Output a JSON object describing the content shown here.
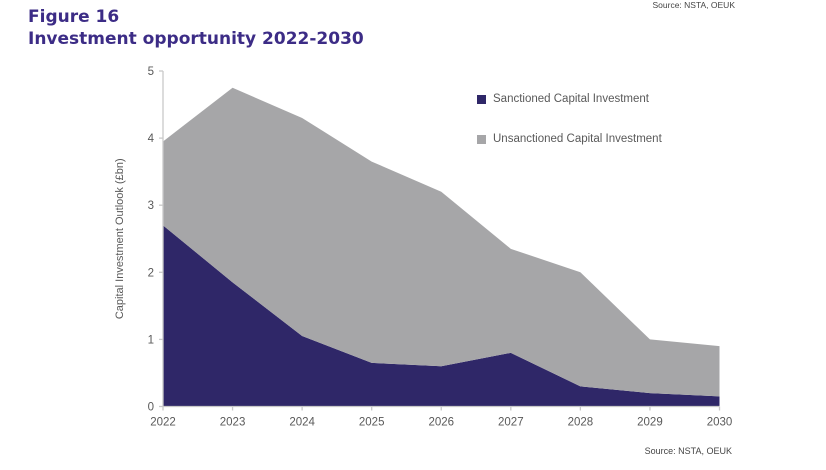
{
  "header": {
    "figure_label": "Figure 16",
    "title": "Investment opportunity 2022-2030",
    "title_color": "#3C2C86"
  },
  "source_top": "Source: NSTA, OEUK",
  "source_bottom": "Source: NSTA, OEUK",
  "colors": {
    "sanctioned": "#2F2768",
    "unsanctioned": "#A6A6A8",
    "axis_line": "#C9C9C9",
    "tick_label": "#595959",
    "title": "#3C2C86"
  },
  "chart_data": {
    "type": "area",
    "stacked": true,
    "title": "Investment opportunity 2022-2030",
    "categories": [
      "2022",
      "2023",
      "2024",
      "2025",
      "2026",
      "2027",
      "2028",
      "2029",
      "2030"
    ],
    "series": [
      {
        "name": "Sanctioned Capital Investment",
        "color": "#2F2768",
        "values": [
          2.7,
          1.85,
          1.05,
          0.65,
          0.6,
          0.8,
          0.3,
          0.2,
          0.15
        ]
      },
      {
        "name": "Unsanctioned Capital Investment",
        "color": "#A6A6A8",
        "values": [
          1.25,
          2.9,
          3.25,
          3.0,
          2.6,
          1.55,
          1.7,
          0.8,
          0.75
        ]
      }
    ],
    "stacked_totals": [
      3.95,
      4.75,
      4.3,
      3.65,
      3.2,
      2.35,
      2.0,
      1.0,
      0.9
    ],
    "xlabel": "",
    "ylabel": "Capital Investment Outlook (£bn)",
    "ylim": [
      0,
      5
    ],
    "yticks": [
      0,
      1,
      2,
      3,
      4,
      5
    ],
    "grid": false,
    "legend_position": "inside-top-right",
    "axis_color": "#C9C9C9",
    "tick_label_color": "#595959"
  }
}
